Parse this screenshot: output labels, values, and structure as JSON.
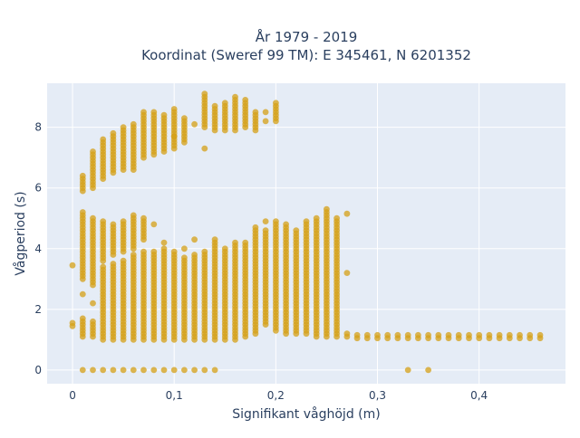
{
  "chart_data": {
    "type": "scatter",
    "title_line1": "År 1979 - 2019",
    "title_line2": "Koordinat (Sweref 99 TM): E 345461, N 6201352",
    "xlabel": "Signifikant våghöjd (m)",
    "ylabel": "Vågperiod (s)",
    "xlim": [
      -0.025,
      0.485
    ],
    "ylim": [
      -0.45,
      9.45
    ],
    "x_ticks": [
      0,
      0.1,
      0.2,
      0.3,
      0.4
    ],
    "x_tick_labels": [
      "0",
      "0,1",
      "0,2",
      "0,3",
      "0,4"
    ],
    "y_ticks": [
      0,
      2,
      4,
      6,
      8
    ],
    "y_tick_labels": [
      "0",
      "2",
      "4",
      "6",
      "8"
    ],
    "grid": true,
    "colors": {
      "marker": "#d4a017",
      "plot_bg": "#e5ecf6",
      "grid": "#ffffff",
      "text": "#2a3f5f"
    },
    "series": [
      {
        "marker_color": "#d4a017",
        "columns": [
          {
            "x": 0.0,
            "segments": [
              [
                1.45,
                1.55
              ]
            ],
            "points": [
              3.45
            ]
          },
          {
            "x": 0.01,
            "segments": [
              [
                1.1,
                1.7
              ],
              [
                3.0,
                5.2
              ],
              [
                5.9,
                6.4
              ]
            ],
            "points": [
              0,
              2.5
            ]
          },
          {
            "x": 0.02,
            "segments": [
              [
                1.1,
                1.6
              ],
              [
                2.8,
                5.0
              ],
              [
                6.0,
                7.2
              ]
            ],
            "points": [
              0,
              2.2
            ]
          },
          {
            "x": 0.03,
            "segments": [
              [
                1.0,
                3.4
              ],
              [
                3.6,
                4.9
              ],
              [
                6.3,
                7.6
              ]
            ],
            "points": [
              0
            ]
          },
          {
            "x": 0.04,
            "segments": [
              [
                1.0,
                3.5
              ],
              [
                3.8,
                4.8
              ],
              [
                6.5,
                7.8
              ]
            ],
            "points": [
              0
            ]
          },
          {
            "x": 0.05,
            "segments": [
              [
                1.0,
                3.6
              ],
              [
                3.9,
                4.9
              ],
              [
                6.6,
                8.0
              ]
            ],
            "points": [
              0
            ]
          },
          {
            "x": 0.06,
            "segments": [
              [
                1.0,
                3.8
              ],
              [
                4.0,
                5.1
              ],
              [
                6.6,
                8.1
              ]
            ],
            "points": [
              0
            ]
          },
          {
            "x": 0.07,
            "segments": [
              [
                1.0,
                3.9
              ],
              [
                4.3,
                5.0
              ],
              [
                7.0,
                8.5
              ]
            ],
            "points": [
              0
            ]
          },
          {
            "x": 0.08,
            "segments": [
              [
                1.0,
                3.9
              ],
              [
                7.1,
                8.5
              ]
            ],
            "points": [
              0,
              4.8
            ]
          },
          {
            "x": 0.09,
            "segments": [
              [
                1.0,
                4.0
              ],
              [
                7.2,
                8.4
              ]
            ],
            "points": [
              0,
              4.2
            ]
          },
          {
            "x": 0.1,
            "segments": [
              [
                1.0,
                3.9
              ],
              [
                7.3,
                8.6
              ]
            ],
            "points": [
              0,
              7.7
            ]
          },
          {
            "x": 0.11,
            "segments": [
              [
                1.0,
                3.7
              ],
              [
                7.5,
                8.3
              ]
            ],
            "points": [
              0,
              4.0
            ]
          },
          {
            "x": 0.12,
            "segments": [
              [
                1.0,
                3.8
              ]
            ],
            "points": [
              0,
              4.3,
              8.1
            ]
          },
          {
            "x": 0.13,
            "segments": [
              [
                1.0,
                3.9
              ],
              [
                8.0,
                9.1
              ]
            ],
            "points": [
              0,
              7.3
            ]
          },
          {
            "x": 0.14,
            "segments": [
              [
                1.0,
                4.3
              ],
              [
                7.9,
                8.7
              ]
            ],
            "points": [
              0
            ]
          },
          {
            "x": 0.15,
            "segments": [
              [
                1.0,
                4.0
              ],
              [
                7.9,
                8.8
              ]
            ],
            "points": []
          },
          {
            "x": 0.16,
            "segments": [
              [
                1.0,
                4.2
              ],
              [
                7.9,
                9.0
              ]
            ],
            "points": []
          },
          {
            "x": 0.17,
            "segments": [
              [
                1.1,
                4.2
              ],
              [
                8.0,
                8.9
              ]
            ],
            "points": []
          },
          {
            "x": 0.18,
            "segments": [
              [
                1.2,
                4.7
              ],
              [
                7.9,
                8.5
              ]
            ],
            "points": []
          },
          {
            "x": 0.19,
            "segments": [
              [
                1.5,
                4.6
              ]
            ],
            "points": [
              4.9,
              8.2,
              8.5
            ]
          },
          {
            "x": 0.2,
            "segments": [
              [
                1.3,
                4.9
              ],
              [
                8.2,
                8.8
              ]
            ],
            "points": []
          },
          {
            "x": 0.21,
            "segments": [
              [
                1.2,
                4.8
              ]
            ],
            "points": []
          },
          {
            "x": 0.22,
            "segments": [
              [
                1.2,
                4.6
              ]
            ],
            "points": []
          },
          {
            "x": 0.23,
            "segments": [
              [
                1.2,
                4.9
              ]
            ],
            "points": []
          },
          {
            "x": 0.24,
            "segments": [
              [
                1.1,
                5.0
              ]
            ],
            "points": []
          },
          {
            "x": 0.25,
            "segments": [
              [
                1.1,
                5.3
              ]
            ],
            "points": []
          },
          {
            "x": 0.26,
            "segments": [
              [
                1.1,
                5.0
              ]
            ],
            "points": []
          },
          {
            "x": 0.27,
            "segments": [
              [
                1.1,
                1.2
              ]
            ],
            "points": [
              3.2,
              5.15
            ]
          },
          {
            "x": 0.28,
            "segments": [
              [
                1.05,
                1.15
              ]
            ],
            "points": []
          },
          {
            "x": 0.29,
            "segments": [
              [
                1.05,
                1.15
              ]
            ],
            "points": []
          },
          {
            "x": 0.3,
            "segments": [
              [
                1.05,
                1.15
              ]
            ],
            "points": []
          },
          {
            "x": 0.31,
            "segments": [
              [
                1.05,
                1.15
              ]
            ],
            "points": []
          },
          {
            "x": 0.32,
            "segments": [
              [
                1.05,
                1.15
              ]
            ],
            "points": []
          },
          {
            "x": 0.33,
            "segments": [
              [
                1.05,
                1.15
              ]
            ],
            "points": [
              0
            ]
          },
          {
            "x": 0.34,
            "segments": [
              [
                1.05,
                1.15
              ]
            ],
            "points": []
          },
          {
            "x": 0.35,
            "segments": [
              [
                1.05,
                1.15
              ]
            ],
            "points": [
              0
            ]
          },
          {
            "x": 0.36,
            "segments": [
              [
                1.05,
                1.15
              ]
            ],
            "points": []
          },
          {
            "x": 0.37,
            "segments": [
              [
                1.05,
                1.15
              ]
            ],
            "points": []
          },
          {
            "x": 0.38,
            "segments": [
              [
                1.05,
                1.15
              ]
            ],
            "points": []
          },
          {
            "x": 0.39,
            "segments": [
              [
                1.05,
                1.15
              ]
            ],
            "points": []
          },
          {
            "x": 0.4,
            "segments": [
              [
                1.05,
                1.15
              ]
            ],
            "points": []
          },
          {
            "x": 0.41,
            "segments": [
              [
                1.05,
                1.15
              ]
            ],
            "points": []
          },
          {
            "x": 0.42,
            "segments": [
              [
                1.05,
                1.15
              ]
            ],
            "points": []
          },
          {
            "x": 0.43,
            "segments": [
              [
                1.05,
                1.15
              ]
            ],
            "points": []
          },
          {
            "x": 0.44,
            "segments": [
              [
                1.05,
                1.15
              ]
            ],
            "points": []
          },
          {
            "x": 0.45,
            "segments": [
              [
                1.05,
                1.15
              ]
            ],
            "points": []
          },
          {
            "x": 0.46,
            "segments": [
              [
                1.05,
                1.15
              ]
            ],
            "points": []
          }
        ]
      }
    ]
  }
}
